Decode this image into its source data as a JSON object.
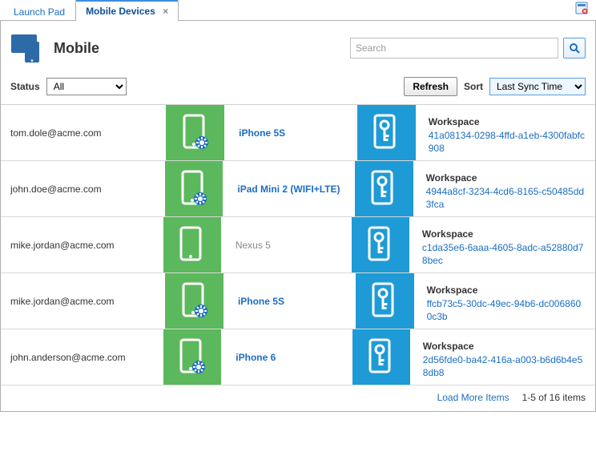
{
  "colors": {
    "link": "#1b6ec2",
    "green": "#5cb85c",
    "blue": "#1e9bd6",
    "border": "#b0b0b0"
  },
  "tabs": {
    "items": [
      {
        "label": "Launch Pad",
        "active": false,
        "closeable": false
      },
      {
        "label": "Mobile Devices",
        "active": true,
        "closeable": true
      }
    ]
  },
  "header": {
    "title": "Mobile"
  },
  "search": {
    "placeholder": "Search"
  },
  "filters": {
    "status_label": "Status",
    "status_value": "All",
    "refresh_label": "Refresh",
    "sort_label": "Sort",
    "sort_value": "Last Sync Time"
  },
  "workspace_label": "Workspace",
  "rows": [
    {
      "email": "tom.dole@acme.com",
      "device": "iPhone 5S",
      "device_linked": true,
      "has_gear": true,
      "ws_id": "41a08134-0298-4ffd-a1eb-4300fabfc908"
    },
    {
      "email": "john.doe@acme.com",
      "device": "iPad Mini 2 (WIFI+LTE)",
      "device_linked": true,
      "has_gear": true,
      "ws_id": "4944a8cf-3234-4cd6-8165-c50485dd3fca"
    },
    {
      "email": "mike.jordan@acme.com",
      "device": "Nexus 5",
      "device_linked": false,
      "has_gear": false,
      "ws_id": "c1da35e6-6aaa-4605-8adc-a52880d78bec"
    },
    {
      "email": "mike.jordan@acme.com",
      "device": "iPhone 5S",
      "device_linked": true,
      "has_gear": true,
      "ws_id": "ffcb73c5-30dc-49ec-94b6-dc0068600c3b"
    },
    {
      "email": "john.anderson@acme.com",
      "device": "iPhone 6",
      "device_linked": true,
      "has_gear": true,
      "ws_id": "2d56fde0-ba42-416a-a003-b6d6b4e58db8"
    }
  ],
  "footer": {
    "load_more": "Load More Items",
    "count": "1-5 of 16 items"
  }
}
